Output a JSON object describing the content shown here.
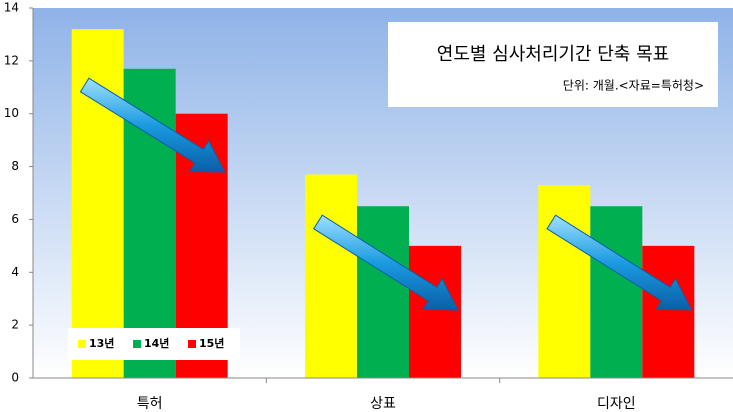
{
  "chart_data": {
    "type": "bar",
    "title": "연도별 심사처리기간 단축 목표",
    "subtitle": "단위: 개월.<자료=특허청>",
    "categories": [
      "특허",
      "상표",
      "디자인"
    ],
    "series": [
      {
        "name": "13년",
        "color": "#ffff00",
        "values": [
          13.2,
          7.7,
          7.3
        ]
      },
      {
        "name": "14년",
        "color": "#00b050",
        "values": [
          11.7,
          6.5,
          6.5
        ]
      },
      {
        "name": "15년",
        "color": "#ff0000",
        "values": [
          10,
          5,
          5
        ]
      }
    ],
    "ylim": [
      0,
      14
    ],
    "yticks": [
      0,
      2,
      4,
      6,
      8,
      10,
      12,
      14
    ],
    "legend": "bottom-left"
  }
}
